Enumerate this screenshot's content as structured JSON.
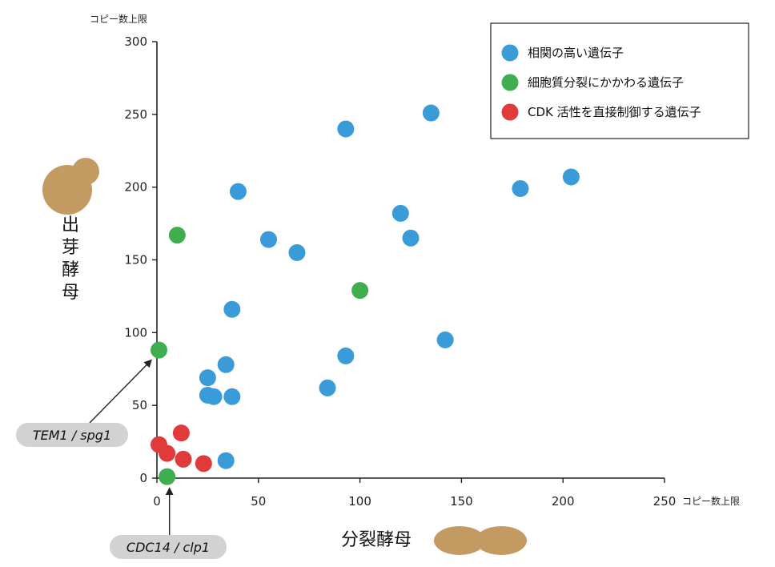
{
  "chart_data": {
    "type": "scatter",
    "y_unit_label": "コピー数上限",
    "x_unit_label": "コピー数上限",
    "y_organism_label": "出芽酵母",
    "x_organism_label": "分裂酵母",
    "xlim": [
      0,
      250
    ],
    "ylim": [
      0,
      300
    ],
    "x_ticks": [
      0,
      50,
      100,
      150,
      200,
      250
    ],
    "y_ticks": [
      0,
      50,
      100,
      150,
      200,
      250,
      300
    ],
    "grid": false,
    "legend_position": "top-right",
    "series": [
      {
        "name": "相関の高い遺伝子",
        "color": "#3a9bd9",
        "points": [
          [
            135,
            251
          ],
          [
            93,
            240
          ],
          [
            204,
            207
          ],
          [
            179,
            199
          ],
          [
            40,
            197
          ],
          [
            120,
            182
          ],
          [
            125,
            165
          ],
          [
            55,
            164
          ],
          [
            69,
            155
          ],
          [
            37,
            116
          ],
          [
            142,
            95
          ],
          [
            93,
            84
          ],
          [
            34,
            78
          ],
          [
            25,
            69
          ],
          [
            84,
            62
          ],
          [
            25,
            57
          ],
          [
            28,
            56
          ],
          [
            37,
            56
          ],
          [
            34,
            12
          ]
        ]
      },
      {
        "name": "細胞質分裂にかかわる遺伝子",
        "color": "#3fae4e",
        "points": [
          [
            10,
            167
          ],
          [
            100,
            129
          ],
          [
            1,
            88
          ],
          [
            5,
            1
          ]
        ]
      },
      {
        "name": "CDK 活性を直接制御する遺伝子",
        "color": "#e03a3a",
        "points": [
          [
            12,
            31
          ],
          [
            1,
            23
          ],
          [
            5,
            17
          ],
          [
            13,
            13
          ],
          [
            23,
            10
          ]
        ]
      }
    ],
    "annotations": [
      {
        "text": "TEM1 / spg1",
        "points_to": [
          1,
          88
        ]
      },
      {
        "text": "CDC14 / clp1",
        "points_to": [
          5,
          1
        ]
      }
    ]
  },
  "colors": {
    "yeast_shape": "#c49a63",
    "callout_bg": "#d2d2d2",
    "axis": "#222222"
  }
}
